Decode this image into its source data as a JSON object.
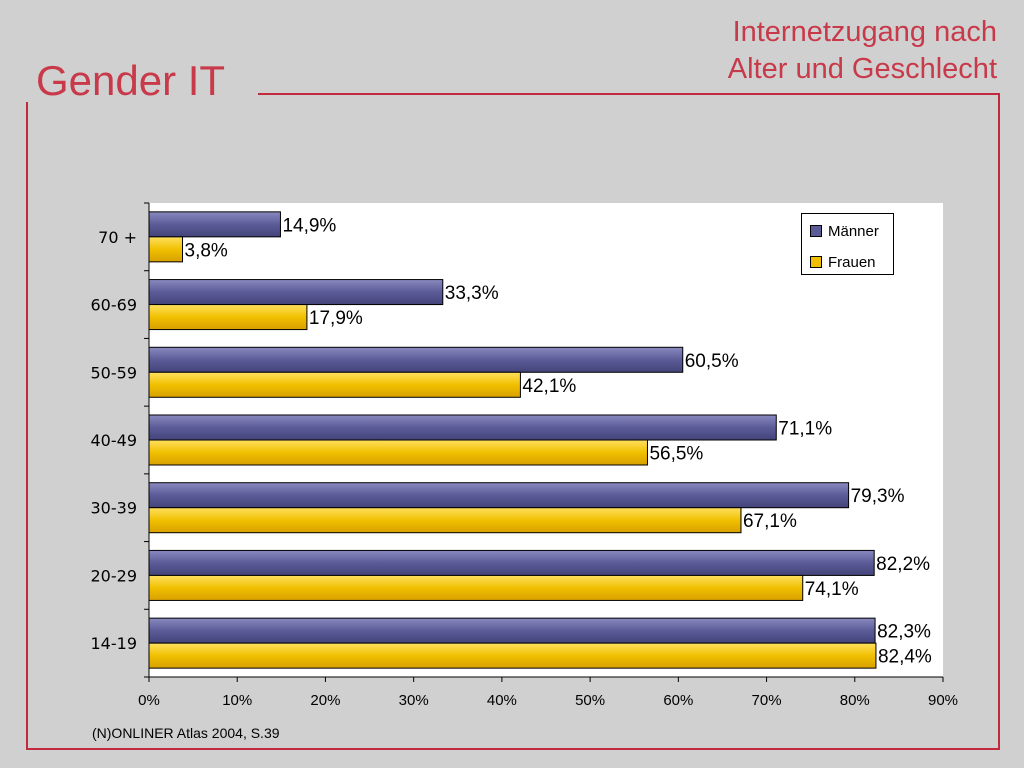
{
  "slide": {
    "title": "Gender IT",
    "subtitle_line1": "Internetzugang nach",
    "subtitle_line2": "Alter und Geschlecht",
    "source": "(N)ONLINER Atlas 2004, S.39"
  },
  "colors": {
    "accent": "#c8394a",
    "maenner": "#5b5b98",
    "frauen": "#f0c000",
    "background": "#d0d0d0",
    "plot_background": "#ffffff"
  },
  "chart_data": {
    "type": "bar",
    "orientation": "horizontal",
    "categories": [
      "70 +",
      "60-69",
      "50-59",
      "40-49",
      "30-39",
      "20-29",
      "14-19"
    ],
    "series": [
      {
        "name": "Männer",
        "values": [
          14.9,
          33.3,
          60.5,
          71.1,
          79.3,
          82.2,
          82.3
        ],
        "labels": [
          "14,9%",
          "33,3%",
          "60,5%",
          "71,1%",
          "79,3%",
          "82,2%",
          "82,3%"
        ]
      },
      {
        "name": "Frauen",
        "values": [
          3.8,
          17.9,
          42.1,
          56.5,
          67.1,
          74.1,
          82.4
        ],
        "labels": [
          "3,8%",
          "17,9%",
          "42,1%",
          "56,5%",
          "67,1%",
          "74,1%",
          "82,4%"
        ]
      }
    ],
    "xlim": [
      0,
      90
    ],
    "x_ticks": [
      "0%",
      "10%",
      "20%",
      "30%",
      "40%",
      "50%",
      "60%",
      "70%",
      "80%",
      "90%"
    ],
    "unit": "%",
    "grid": false,
    "legend_position": "top-right"
  }
}
